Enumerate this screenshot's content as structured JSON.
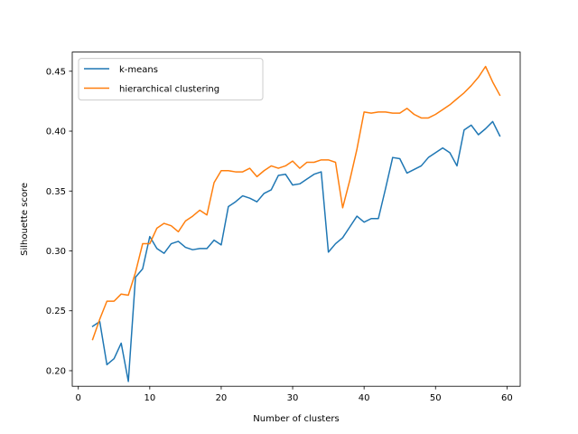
{
  "chart_data": {
    "type": "line",
    "title": "",
    "xlabel": "Number of clusters",
    "ylabel": "Silhouette score",
    "xlim": [
      -0.85,
      61.85
    ],
    "ylim": [
      0.187,
      0.466
    ],
    "xticks": [
      0,
      10,
      20,
      30,
      40,
      50,
      60
    ],
    "yticks": [
      0.2,
      0.25,
      0.3,
      0.35,
      0.4,
      0.45
    ],
    "grid": false,
    "legend": "top-left",
    "x": [
      2,
      3,
      4,
      5,
      6,
      7,
      8,
      9,
      10,
      11,
      12,
      13,
      14,
      15,
      16,
      17,
      18,
      19,
      20,
      21,
      22,
      23,
      24,
      25,
      26,
      27,
      28,
      29,
      30,
      31,
      32,
      33,
      34,
      35,
      36,
      37,
      38,
      39,
      40,
      41,
      42,
      43,
      44,
      45,
      46,
      47,
      48,
      49,
      50,
      51,
      52,
      53,
      54,
      55,
      56,
      57,
      58,
      59
    ],
    "series": [
      {
        "name": "k-means",
        "color": "#1f77b4",
        "values": [
          0.237,
          0.241,
          0.205,
          0.21,
          0.223,
          0.191,
          0.278,
          0.285,
          0.312,
          0.302,
          0.298,
          0.306,
          0.308,
          0.303,
          0.301,
          0.302,
          0.302,
          0.309,
          0.305,
          0.337,
          0.341,
          0.346,
          0.344,
          0.341,
          0.348,
          0.351,
          0.363,
          0.364,
          0.355,
          0.356,
          0.36,
          0.364,
          0.366,
          0.299,
          0.306,
          0.311,
          0.32,
          0.329,
          0.324,
          0.327,
          0.327,
          0.352,
          0.378,
          0.377,
          0.365,
          0.368,
          0.371,
          0.378,
          0.382,
          0.386,
          0.382,
          0.371,
          0.401,
          0.405,
          0.397,
          0.402,
          0.408,
          0.396
        ]
      },
      {
        "name": "hierarchical clustering",
        "color": "#ff7f0e",
        "values": [
          0.226,
          0.243,
          0.258,
          0.258,
          0.264,
          0.263,
          0.282,
          0.306,
          0.306,
          0.319,
          0.323,
          0.321,
          0.316,
          0.325,
          0.329,
          0.334,
          0.33,
          0.357,
          0.367,
          0.367,
          0.366,
          0.366,
          0.369,
          0.362,
          0.367,
          0.371,
          0.369,
          0.371,
          0.375,
          0.369,
          0.374,
          0.374,
          0.376,
          0.376,
          0.374,
          0.336,
          0.359,
          0.385,
          0.416,
          0.415,
          0.416,
          0.416,
          0.415,
          0.415,
          0.419,
          0.414,
          0.411,
          0.411,
          0.414,
          0.418,
          0.422,
          0.427,
          0.432,
          0.438,
          0.445,
          0.454,
          0.441,
          0.43
        ]
      }
    ]
  }
}
